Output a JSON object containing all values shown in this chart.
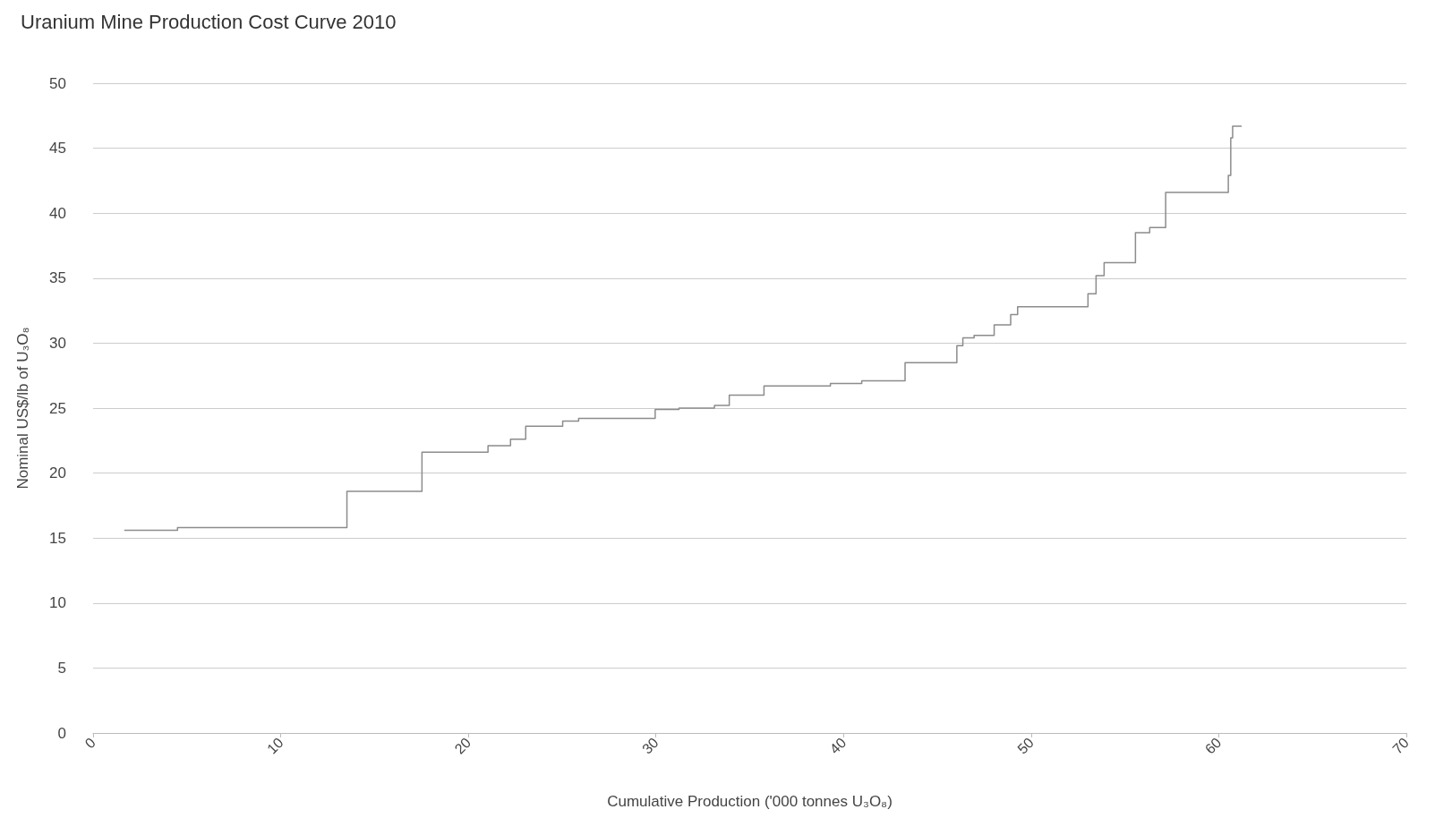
{
  "chart_data": {
    "type": "step",
    "title": "Uranium Mine Production Cost Curve 2010",
    "xlabel": "Cumulative Production ('000 tonnes U₃O₈)",
    "ylabel": "Nominal US$/lb of U₃O₈",
    "series": [
      {
        "color": "#8c8c8c",
        "x": [
          1.66,
          4.5,
          13.53,
          17.53,
          21.05,
          22.25,
          23.06,
          25.03,
          25.88,
          27.16,
          29.96,
          31.23,
          33.12,
          33.91,
          35.76,
          39.3,
          40.97,
          43.28,
          46.04,
          46.36,
          46.96,
          48.03,
          48.91,
          49.28,
          53.03,
          53.46,
          53.89,
          55.56,
          56.32,
          57.17,
          60.51,
          60.64,
          60.74,
          61.22
        ],
        "values": [
          15.6,
          15.8,
          18.6,
          21.6,
          22.1,
          22.6,
          23.6,
          24.0,
          24.2,
          24.2,
          24.9,
          25.0,
          25.2,
          26.0,
          26.7,
          26.9,
          27.1,
          28.5,
          29.8,
          30.4,
          30.6,
          31.4,
          32.2,
          32.8,
          33.8,
          35.2,
          36.2,
          38.5,
          38.9,
          41.6,
          42.9,
          45.8,
          46.7,
          46.7
        ]
      }
    ],
    "xlim": [
      0,
      70
    ],
    "xticks": [
      0,
      10,
      20,
      30,
      40,
      50,
      60,
      70
    ],
    "ylim": [
      0,
      50
    ],
    "yticks": [
      0,
      5,
      10,
      15,
      20,
      25,
      30,
      35,
      40,
      45,
      50
    ],
    "grid": "y",
    "marker": "none",
    "line_style": "solid"
  }
}
